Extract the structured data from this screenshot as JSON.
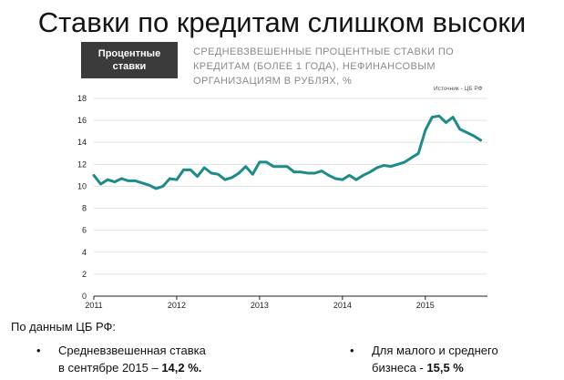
{
  "slide": {
    "title": "Ставки по кредитам слишком высоки",
    "badge": "Процентные\nставки",
    "chart_heading": "СРЕДНЕВЗВЕШЕННЫЕ ПРОЦЕНТНЫЕ СТАВКИ ПО\nКРЕДИТАМ (БОЛЕЕ 1 ГОДА), НЕФИНАНСОВЫМ\nОРГАНИЗАЦИЯМ В РУБЛЯХ, %",
    "source": "Источник - ЦБ РФ",
    "caption": "По данным ЦБ РФ:",
    "bullets": [
      {
        "dot": "•",
        "line1": "Средневзвешенная ставка",
        "line2_prefix": "в сентябре 2015 – ",
        "line2_value": "14,2 %."
      },
      {
        "dot": "•",
        "line1": "Для малого и среднего",
        "line2_prefix": "бизнеса - ",
        "line2_value": "15,5 %"
      }
    ],
    "colors": {
      "line": "#1f8a8a",
      "grid": "#e3e3e3",
      "axis": "#222222"
    }
  },
  "chart_data": {
    "type": "line",
    "title": "СРЕДНЕВЗВЕШЕННЫЕ ПРОЦЕНТНЫЕ СТАВКИ ПО КРЕДИТАМ (БОЛЕЕ 1 ГОДА), НЕФИНАНСОВЫМ ОРГАНИЗАЦИЯМ В РУБЛЯХ, %",
    "x": [
      2011.0,
      2011.083,
      2011.167,
      2011.25,
      2011.333,
      2011.417,
      2011.5,
      2011.583,
      2011.667,
      2011.75,
      2011.833,
      2011.917,
      2012.0,
      2012.083,
      2012.167,
      2012.25,
      2012.333,
      2012.417,
      2012.5,
      2012.583,
      2012.667,
      2012.75,
      2012.833,
      2012.917,
      2013.0,
      2013.083,
      2013.167,
      2013.25,
      2013.333,
      2013.417,
      2013.5,
      2013.583,
      2013.667,
      2013.75,
      2013.833,
      2013.917,
      2014.0,
      2014.083,
      2014.167,
      2014.25,
      2014.333,
      2014.417,
      2014.5,
      2014.583,
      2014.667,
      2014.75,
      2014.833,
      2014.917,
      2015.0,
      2015.083,
      2015.167,
      2015.25,
      2015.333,
      2015.417,
      2015.5,
      2015.583,
      2015.667
    ],
    "values": [
      11.0,
      10.2,
      10.6,
      10.4,
      10.7,
      10.5,
      10.5,
      10.3,
      10.1,
      9.8,
      10.0,
      10.7,
      10.6,
      11.5,
      11.5,
      10.9,
      11.7,
      11.2,
      11.1,
      10.6,
      10.8,
      11.2,
      11.8,
      11.1,
      12.2,
      12.2,
      11.8,
      11.8,
      11.8,
      11.3,
      11.3,
      11.2,
      11.2,
      11.4,
      11.0,
      10.7,
      10.6,
      11.0,
      10.6,
      11.0,
      11.3,
      11.7,
      11.9,
      11.8,
      12.0,
      12.2,
      12.6,
      13.0,
      15.1,
      16.3,
      16.4,
      15.8,
      16.3,
      15.2,
      14.9,
      14.6,
      14.2
    ],
    "xticks": [
      "2011",
      "2012",
      "2013",
      "2014",
      "2015"
    ],
    "yticks": [
      "0",
      "2",
      "4",
      "6",
      "8",
      "10",
      "12",
      "14",
      "16",
      "18"
    ],
    "xlim": [
      2011,
      2015.75
    ],
    "ylim": [
      0,
      18
    ],
    "grid": true
  }
}
